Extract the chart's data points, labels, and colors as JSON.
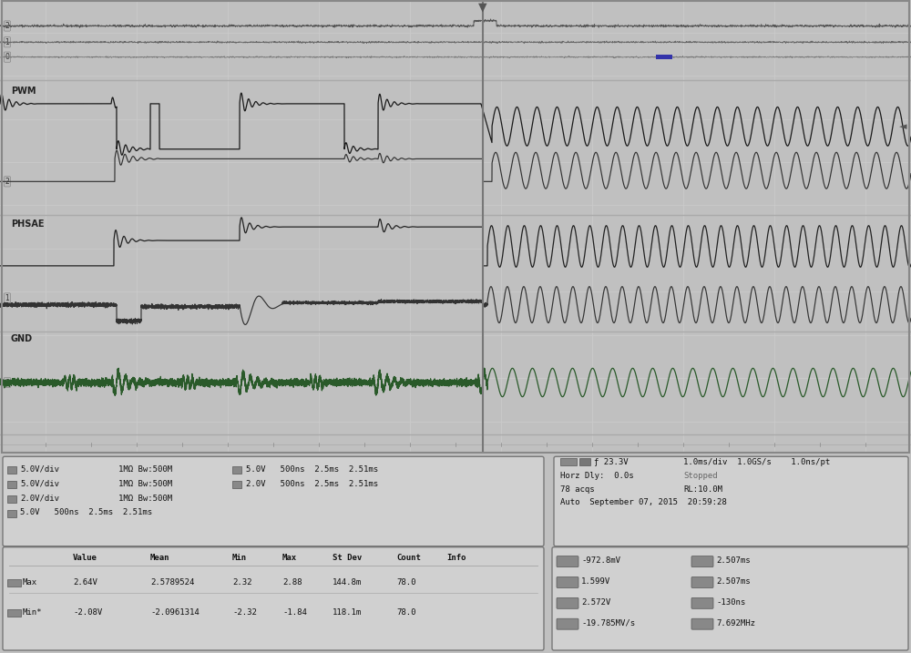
{
  "bg_color": "#c0c0c0",
  "screen_bg": "#f0f0f0",
  "panel_bg": "#c8c8c8",
  "measurements": [
    [
      "-972.8mV",
      "2.507ms"
    ],
    [
      "1.599V",
      "2.507ms"
    ],
    [
      "2.572V",
      "-130ns"
    ],
    [
      "-19.785MV/s",
      "7.692MHz"
    ]
  ],
  "stats_rows": [
    [
      "Max",
      "2.64V",
      "2.5789524",
      "2.32",
      "2.88",
      "144.8m",
      "78.0"
    ],
    [
      "Min*",
      "-2.08V",
      "-2.0961314",
      "-2.32",
      "-1.84",
      "118.1m",
      "78.0"
    ]
  ],
  "ch_info_lines": [
    "  5.0V/div   1MΩ Bw:500M      5.0V   500ns  2.5ms  2.51ms",
    "  5.0V/div   1MΩ Bw:500M      2.0V   500ns  2.5ms  2.51ms",
    "  2.0V/div   1MΩ Bw:500M",
    "  5.0V   500ns  2.5ms  2.51ms"
  ],
  "trig_lines": [
    "A¹  ■  ƒ 23.3V      1.0ms/div  1.0GS/s    1.0ns/pt",
    "Horz Dly:  0.0s",
    "Stopped",
    "78 acqs                          RL:10.0M",
    "Auto  September 07, 2015  20:59:28"
  ]
}
